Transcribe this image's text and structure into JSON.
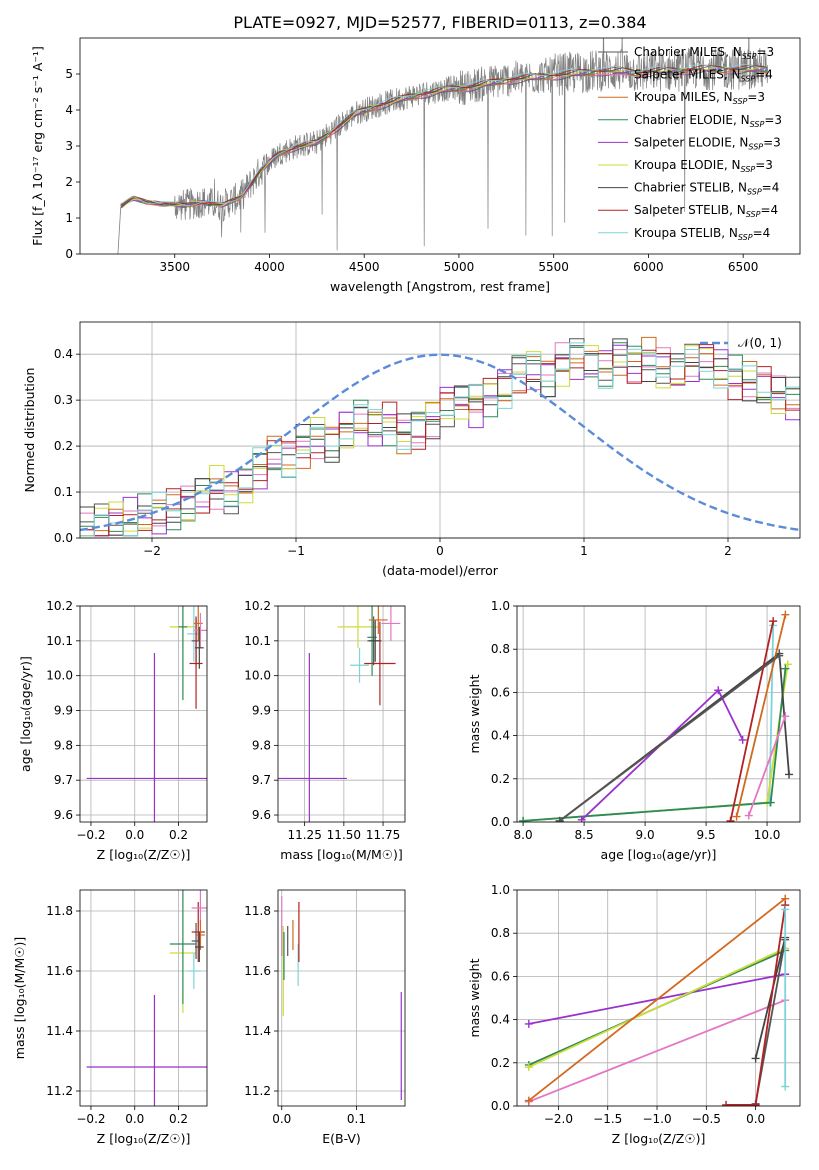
{
  "figure_title": "PLATE=0927, MJD=52577, FIBERID=0113, z=0.384",
  "models": [
    {
      "name": "Chabrier MILES",
      "nssp": "3",
      "color": "#555555"
    },
    {
      "name": "Salpeter MILES",
      "nssp": "4",
      "color": "#e377c2"
    },
    {
      "name": "Kroupa MILES",
      "nssp": "3",
      "color": "#d2691e"
    },
    {
      "name": "Chabrier ELODIE",
      "nssp": "3",
      "color": "#2e8b57"
    },
    {
      "name": "Salpeter ELODIE",
      "nssp": "3",
      "color": "#9932cc"
    },
    {
      "name": "Kroupa ELODIE",
      "nssp": "3",
      "color": "#cddc39"
    },
    {
      "name": "Chabrier STELIB",
      "nssp": "4",
      "color": "#444444"
    },
    {
      "name": "Salpeter STELIB",
      "nssp": "4",
      "color": "#b22222"
    },
    {
      "name": "Kroupa STELIB",
      "nssp": "4",
      "color": "#7fd3d8"
    }
  ],
  "chart_data": [
    {
      "id": "spectrum",
      "type": "line",
      "xlabel": "wavelength [Angstrom, rest frame]",
      "ylabel": "Flux [f_λ 10⁻¹⁷ erg cm⁻² s⁻¹ A⁻¹]",
      "xlim": [
        3000,
        6800
      ],
      "ylim": [
        0,
        6
      ],
      "xticks": [
        3500,
        4000,
        4500,
        5000,
        5500,
        6000,
        6500
      ],
      "yticks": [
        0,
        1,
        2,
        3,
        4,
        5
      ],
      "data_color": "#808080",
      "continuum": [
        [
          3220,
          1.35
        ],
        [
          3280,
          1.55
        ],
        [
          3350,
          1.45
        ],
        [
          3450,
          1.4
        ],
        [
          3550,
          1.35
        ],
        [
          3650,
          1.45
        ],
        [
          3750,
          1.35
        ],
        [
          3850,
          1.6
        ],
        [
          3950,
          2.3
        ],
        [
          4050,
          2.8
        ],
        [
          4150,
          3.0
        ],
        [
          4250,
          3.1
        ],
        [
          4350,
          3.5
        ],
        [
          4450,
          3.9
        ],
        [
          4550,
          4.1
        ],
        [
          4650,
          4.25
        ],
        [
          4750,
          4.4
        ],
        [
          4850,
          4.5
        ],
        [
          4950,
          4.6
        ],
        [
          5050,
          4.65
        ],
        [
          5150,
          4.75
        ],
        [
          5250,
          4.85
        ],
        [
          5350,
          4.9
        ],
        [
          5450,
          4.95
        ],
        [
          5550,
          5.0
        ],
        [
          5650,
          5.05
        ],
        [
          5750,
          5.1
        ],
        [
          5850,
          5.1
        ],
        [
          5950,
          5.05
        ],
        [
          6050,
          5.1
        ],
        [
          6150,
          5.1
        ],
        [
          6250,
          5.15
        ],
        [
          6350,
          5.15
        ],
        [
          6450,
          5.15
        ],
        [
          6550,
          5.15
        ],
        [
          6620,
          5.15
        ]
      ],
      "legend": "upper right",
      "grid": false
    },
    {
      "id": "residuals",
      "type": "area",
      "xlabel": "(data-model)/error",
      "ylabel": "Normed distribution",
      "xlim": [
        -2.5,
        2.5
      ],
      "ylim": [
        0,
        0.47
      ],
      "xticks": [
        -2,
        -1,
        0,
        1,
        2
      ],
      "yticks": [
        0.0,
        0.1,
        0.2,
        0.3,
        0.4
      ],
      "reference_label": "𝒩(0, 1)",
      "reference_color": "#5b8bd9",
      "bins_start": -2.5,
      "bin_width": 0.1,
      "histogram": [
        0.02,
        0.03,
        0.04,
        0.04,
        0.05,
        0.05,
        0.06,
        0.07,
        0.09,
        0.11,
        0.1,
        0.12,
        0.15,
        0.18,
        0.17,
        0.2,
        0.22,
        0.21,
        0.24,
        0.26,
        0.24,
        0.25,
        0.23,
        0.24,
        0.26,
        0.29,
        0.3,
        0.29,
        0.31,
        0.33,
        0.36,
        0.37,
        0.35,
        0.38,
        0.39,
        0.38,
        0.37,
        0.4,
        0.38,
        0.39,
        0.37,
        0.36,
        0.38,
        0.39,
        0.37,
        0.35,
        0.34,
        0.33,
        0.31,
        0.3,
        0.28,
        0.26,
        0.25,
        0.22,
        0.21,
        0.2,
        0.17,
        0.16,
        0.14,
        0.13,
        0.12,
        0.1,
        0.08,
        0.07,
        0.07,
        0.06,
        0.05,
        0.05,
        0.04,
        0.04
      ],
      "legend": "upper right",
      "grid": true
    },
    {
      "id": "age_vs_Z",
      "type": "scatter",
      "xlabel": "Z [log₁₀(Z/Z☉)]",
      "ylabel": "age  [log₁₀(age/yr)]",
      "xlim": [
        -0.25,
        0.33
      ],
      "ylim": [
        9.58,
        10.2
      ],
      "xticks": [
        -0.2,
        0.0,
        0.2
      ],
      "yticks": [
        9.6,
        9.7,
        9.8,
        9.9,
        10.0,
        10.1,
        10.2
      ],
      "points": [
        {
          "model": 4,
          "x": 0.09,
          "y": 9.705,
          "xerr": 0.31,
          "yerr": 0.36
        },
        {
          "model": 5,
          "x": 0.22,
          "y": 10.14,
          "xerr": 0.06,
          "yerr": 0.06
        },
        {
          "model": 3,
          "x": 0.22,
          "y": 10.14,
          "xerr": 0.02,
          "yerr": 0.21
        },
        {
          "model": 8,
          "x": 0.27,
          "y": 10.12,
          "xerr": 0.03,
          "yerr": 0.08
        },
        {
          "model": 0,
          "x": 0.28,
          "y": 10.1,
          "xerr": 0.02,
          "yerr": 0.07
        },
        {
          "model": 7,
          "x": 0.28,
          "y": 10.035,
          "xerr": 0.03,
          "yerr": 0.13
        },
        {
          "model": 2,
          "x": 0.29,
          "y": 10.15,
          "xerr": 0.02,
          "yerr": 0.05
        },
        {
          "model": 1,
          "x": 0.3,
          "y": 10.13,
          "xerr": 0.03,
          "yerr": 0.05
        },
        {
          "model": 6,
          "x": 0.295,
          "y": 10.08,
          "xerr": 0.02,
          "yerr": 0.06
        }
      ],
      "grid": true
    },
    {
      "id": "age_vs_mass",
      "type": "scatter",
      "xlabel": "mass [log₁₀(M/M☉)]",
      "ylabel": "",
      "xlim": [
        11.08,
        11.89
      ],
      "ylim": [
        9.58,
        10.2
      ],
      "xticks": [
        11.25,
        11.5,
        11.75
      ],
      "yticks": [
        9.6,
        9.7,
        9.8,
        9.9,
        10.0,
        10.1,
        10.2
      ],
      "points": [
        {
          "model": 4,
          "x": 11.28,
          "y": 9.705,
          "xerr": 0.24,
          "yerr": 0.36
        },
        {
          "model": 5,
          "x": 11.59,
          "y": 10.14,
          "xerr": 0.13,
          "yerr": 0.06
        },
        {
          "model": 8,
          "x": 11.6,
          "y": 10.03,
          "xerr": 0.06,
          "yerr": 0.05
        },
        {
          "model": 3,
          "x": 11.68,
          "y": 10.11,
          "xerr": 0.03,
          "yerr": 0.11
        },
        {
          "model": 0,
          "x": 11.69,
          "y": 10.1,
          "xerr": 0.04,
          "yerr": 0.07
        },
        {
          "model": 6,
          "x": 11.7,
          "y": 10.1,
          "xerr": 0.04,
          "yerr": 0.06
        },
        {
          "model": 7,
          "x": 11.73,
          "y": 10.035,
          "xerr": 0.1,
          "yerr": 0.12
        },
        {
          "model": 2,
          "x": 11.72,
          "y": 10.16,
          "xerr": 0.06,
          "yerr": 0.04
        },
        {
          "model": 1,
          "x": 11.8,
          "y": 10.15,
          "xerr": 0.06,
          "yerr": 0.05
        }
      ],
      "grid": true
    },
    {
      "id": "mass_weight_vs_age",
      "type": "line",
      "xlabel": "age  [log₁₀(age/yr)]",
      "ylabel": "mass weight",
      "xlim": [
        7.95,
        10.27
      ],
      "ylim": [
        0,
        1
      ],
      "xticks": [
        8.0,
        8.5,
        9.0,
        9.5,
        10.0
      ],
      "yticks": [
        0.0,
        0.2,
        0.4,
        0.6,
        0.8,
        1.0
      ],
      "series": [
        {
          "model": 8,
          "x": [
            8.0,
            10.02,
            10.05
          ],
          "y": [
            0.005,
            0.09,
            0.91
          ]
        },
        {
          "model": 5,
          "x": [
            8.0,
            10.0,
            10.17
          ],
          "y": [
            0.005,
            0.09,
            0.73
          ]
        },
        {
          "model": 3,
          "x": [
            8.0,
            10.03,
            10.15
          ],
          "y": [
            0.005,
            0.09,
            0.71
          ]
        },
        {
          "model": 6,
          "x": [
            8.3,
            10.1,
            10.18
          ],
          "y": [
            0.005,
            0.78,
            0.22
          ]
        },
        {
          "model": 4,
          "x": [
            8.48,
            9.6,
            9.8
          ],
          "y": [
            0.01,
            0.61,
            0.38
          ]
        },
        {
          "model": 7,
          "x": [
            9.7,
            10.05
          ],
          "y": [
            0.005,
            0.93
          ]
        },
        {
          "model": 2,
          "x": [
            9.75,
            10.15
          ],
          "y": [
            0.025,
            0.96
          ]
        },
        {
          "model": 1,
          "x": [
            9.85,
            10.15
          ],
          "y": [
            0.03,
            0.49
          ]
        },
        {
          "model": 0,
          "x": [
            8.3,
            10.1
          ],
          "y": [
            0.005,
            0.77
          ]
        }
      ],
      "grid": true
    },
    {
      "id": "mass_vs_Z",
      "type": "scatter",
      "xlabel": "Z [log₁₀(Z/Z☉)]",
      "ylabel": "mass [log₁₀(M/M☉)]",
      "xlim": [
        -0.25,
        0.33
      ],
      "ylim": [
        11.15,
        11.87
      ],
      "xticks": [
        -0.2,
        0.0,
        0.2
      ],
      "yticks": [
        11.2,
        11.4,
        11.6,
        11.8
      ],
      "points": [
        {
          "model": 4,
          "x": 0.09,
          "y": 11.28,
          "xerr": 0.31,
          "yerr": 0.24
        },
        {
          "model": 5,
          "x": 0.22,
          "y": 11.66,
          "xerr": 0.06,
          "yerr": 0.2
        },
        {
          "model": 3,
          "x": 0.22,
          "y": 11.69,
          "xerr": 0.06,
          "yerr": 0.2
        },
        {
          "model": 8,
          "x": 0.27,
          "y": 11.6,
          "xerr": 0.03,
          "yerr": 0.06
        },
        {
          "model": 0,
          "x": 0.28,
          "y": 11.7,
          "xerr": 0.02,
          "yerr": 0.06
        },
        {
          "model": 7,
          "x": 0.29,
          "y": 11.73,
          "xerr": 0.03,
          "yerr": 0.1
        },
        {
          "model": 1,
          "x": 0.3,
          "y": 11.81,
          "xerr": 0.04,
          "yerr": 0.06
        },
        {
          "model": 2,
          "x": 0.3,
          "y": 11.72,
          "xerr": 0.02,
          "yerr": 0.05
        },
        {
          "model": 6,
          "x": 0.295,
          "y": 11.68,
          "xerr": 0.02,
          "yerr": 0.05
        }
      ],
      "grid": true
    },
    {
      "id": "mass_vs_ebv",
      "type": "scatter",
      "xlabel": "E(B-V)",
      "ylabel": "",
      "xlim": [
        -0.005,
        0.165
      ],
      "ylim": [
        11.15,
        11.87
      ],
      "xticks": [
        0.0,
        0.1
      ],
      "yticks": [
        11.2,
        11.4,
        11.6,
        11.8
      ],
      "points": [
        {
          "model": 1,
          "x": 0.0,
          "y": 11.75,
          "xerr": 0.0,
          "yerr": 0.1
        },
        {
          "model": 5,
          "x": 0.002,
          "y": 11.6,
          "xerr": 0.0,
          "yerr": 0.15
        },
        {
          "model": 3,
          "x": 0.003,
          "y": 11.65,
          "xerr": 0.0,
          "yerr": 0.08
        },
        {
          "model": 0,
          "x": 0.008,
          "y": 11.7,
          "xerr": 0.0,
          "yerr": 0.05
        },
        {
          "model": 2,
          "x": 0.015,
          "y": 11.72,
          "xerr": 0.0,
          "yerr": 0.05
        },
        {
          "model": 8,
          "x": 0.022,
          "y": 11.62,
          "xerr": 0.0,
          "yerr": 0.07
        },
        {
          "model": 7,
          "x": 0.023,
          "y": 11.73,
          "xerr": 0.0,
          "yerr": 0.1
        },
        {
          "model": 4,
          "x": 0.16,
          "y": 11.35,
          "xerr": 0.0,
          "yerr": 0.18
        }
      ],
      "grid": true
    },
    {
      "id": "mass_weight_vs_Z",
      "type": "line",
      "xlabel": "Z [log₁₀(Z/Z☉)]",
      "ylabel": "mass weight",
      "xlim": [
        -2.42,
        0.45
      ],
      "ylim": [
        0,
        1
      ],
      "xticks": [
        -2.0,
        -1.5,
        -1.0,
        -0.5,
        0.0
      ],
      "yticks": [
        0.0,
        0.2,
        0.4,
        0.6,
        0.8,
        1.0
      ],
      "series": [
        {
          "model": 4,
          "x": [
            -2.3,
            0.3
          ],
          "y": [
            0.38,
            0.61
          ]
        },
        {
          "model": 3,
          "x": [
            -2.3,
            0.3
          ],
          "y": [
            0.19,
            0.72
          ]
        },
        {
          "model": 5,
          "x": [
            -2.3,
            0.3
          ],
          "y": [
            0.18,
            0.73
          ]
        },
        {
          "model": 1,
          "x": [
            -2.3,
            0.3
          ],
          "y": [
            0.02,
            0.49
          ]
        },
        {
          "model": 2,
          "x": [
            -2.3,
            0.3
          ],
          "y": [
            0.025,
            0.96
          ]
        },
        {
          "model": 6,
          "x": [
            0.0,
            0.3
          ],
          "y": [
            0.22,
            0.78
          ]
        },
        {
          "model": 0,
          "x": [
            0.0,
            0.3
          ],
          "y": [
            0.01,
            0.77
          ]
        },
        {
          "model": 7,
          "x": [
            -0.3,
            0.0,
            0.3
          ],
          "y": [
            0.005,
            0.005,
            0.93
          ]
        },
        {
          "model": 8,
          "x": [
            0.3,
            0.3
          ],
          "y": [
            0.09,
            0.91
          ]
        }
      ],
      "grid": true
    }
  ]
}
